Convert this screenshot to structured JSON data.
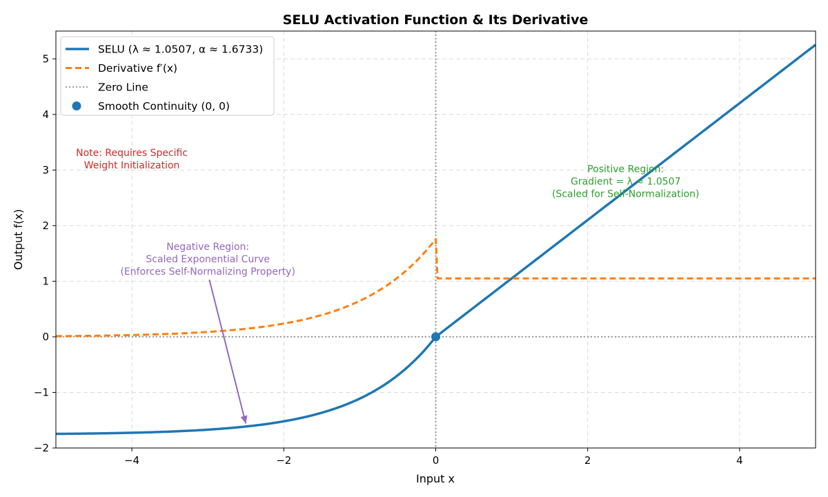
{
  "chart_data": {
    "type": "line",
    "title": "SELU Activation Function & Its Derivative",
    "xlabel": "Input x",
    "ylabel": "Output f(x)",
    "xlim": [
      -5,
      5
    ],
    "ylim": [
      -2,
      5.5
    ],
    "xticks": [
      -4,
      -2,
      0,
      2,
      4
    ],
    "xtick_labels": [
      "−4",
      "−2",
      "0",
      "2",
      "4"
    ],
    "yticks": [
      -2,
      -1,
      0,
      1,
      2,
      3,
      4,
      5
    ],
    "ytick_labels": [
      "−2",
      "−1",
      "0",
      "1",
      "2",
      "3",
      "4",
      "5"
    ],
    "grid": true,
    "parameters": {
      "lambda": 1.0507,
      "alpha": 1.6733
    },
    "series": [
      {
        "name": "SELU (λ ≈ 1.0507, α ≈ 1.6733)",
        "kind": "selu",
        "style": "solid",
        "color": "#1f77b4",
        "x_range": [
          -5,
          5
        ],
        "samples": 400
      },
      {
        "name": "Derivative f′(x)",
        "kind": "selu_derivative",
        "style": "dashed",
        "color": "#ff7f0e",
        "x_range": [
          -5,
          5
        ],
        "samples": 400
      }
    ],
    "reference_lines": [
      {
        "name": "Zero Line",
        "orientation": "horizontal",
        "value": 0,
        "color": "#999999"
      },
      {
        "name": "Zero Line (vertical)",
        "orientation": "vertical",
        "value": 0,
        "color": "#999999"
      }
    ],
    "points": [
      {
        "name": "Smooth Continuity (0, 0)",
        "x": 0,
        "y": 0,
        "color": "#1f77b4"
      }
    ],
    "legend": {
      "position": "top-left",
      "entries": [
        {
          "label": "SELU (λ ≈ 1.0507, α ≈ 1.6733)",
          "style": "solid",
          "color": "#1f77b4"
        },
        {
          "label": "Derivative f′(x)",
          "style": "dashed",
          "color": "#ff7f0e"
        },
        {
          "label": "Zero Line",
          "style": "dotted",
          "color": "#999999"
        },
        {
          "label": "Smooth Continuity (0, 0)",
          "style": "marker",
          "color": "#1f77b4"
        }
      ]
    },
    "annotations": [
      {
        "lines": [
          "Note: Requires Specific",
          "Weight Initialization"
        ],
        "color": "#d62728",
        "at": [
          -4.0,
          3.2
        ]
      },
      {
        "lines": [
          "Positive Region:",
          "Gradient = λ ≈ 1.0507",
          "(Scaled for Self-Normalization)"
        ],
        "color": "#2ca02c",
        "at": [
          2.5,
          2.8
        ]
      },
      {
        "lines": [
          "Negative Region:",
          "Scaled Exponential Curve",
          "(Enforces Self-Normalizing Property)"
        ],
        "color": "#9467bd",
        "at": [
          -3.0,
          1.4
        ],
        "arrow_to": [
          -2.5,
          -1.56
        ]
      }
    ]
  }
}
